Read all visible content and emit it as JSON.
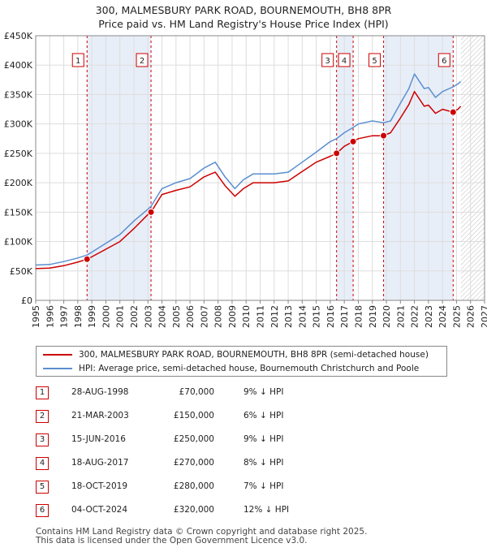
{
  "title": {
    "line1": "300, MALMESBURY PARK ROAD, BOURNEMOUTH, BH8 8PR",
    "line2": "Price paid vs. HM Land Registry's House Price Index (HPI)"
  },
  "colors": {
    "property": "#cc0000",
    "hpi": "#5b8fd0",
    "shade": "#e8eef8"
  },
  "legend": {
    "property": "300, MALMESBURY PARK ROAD, BOURNEMOUTH, BH8 8PR (semi-detached house)",
    "hpi": "HPI: Average price, semi-detached house, Bournemouth Christchurch and Poole"
  },
  "transactions": [
    {
      "num": "1",
      "date": "28-AUG-1998",
      "price": "£70,000",
      "hpi": "9% ↓ HPI"
    },
    {
      "num": "2",
      "date": "21-MAR-2003",
      "price": "£150,000",
      "hpi": "6% ↓ HPI"
    },
    {
      "num": "3",
      "date": "15-JUN-2016",
      "price": "£250,000",
      "hpi": "9% ↓ HPI"
    },
    {
      "num": "4",
      "date": "18-AUG-2017",
      "price": "£270,000",
      "hpi": "8% ↓ HPI"
    },
    {
      "num": "5",
      "date": "18-OCT-2019",
      "price": "£280,000",
      "hpi": "7% ↓ HPI"
    },
    {
      "num": "6",
      "date": "04-OCT-2024",
      "price": "£320,000",
      "hpi": "12% ↓ HPI"
    }
  ],
  "footer": {
    "line1": "Contains HM Land Registry data © Crown copyright and database right 2025.",
    "line2": "This data is licensed under the Open Government Licence v3.0."
  },
  "chart_data": {
    "type": "line",
    "xlim": [
      1995,
      2027
    ],
    "ylim": [
      0,
      450000
    ],
    "x_ticks": [
      "1995",
      "1996",
      "1997",
      "1998",
      "1999",
      "2000",
      "2001",
      "2002",
      "2003",
      "2004",
      "2005",
      "2006",
      "2007",
      "2008",
      "2009",
      "2010",
      "2011",
      "2012",
      "2013",
      "2014",
      "2015",
      "2016",
      "2017",
      "2018",
      "2019",
      "2020",
      "2021",
      "2022",
      "2023",
      "2024",
      "2025",
      "2026",
      "2027"
    ],
    "y_ticks": [
      {
        "value": 0,
        "label": "£0"
      },
      {
        "value": 50000,
        "label": "£50K"
      },
      {
        "value": 100000,
        "label": "£100K"
      },
      {
        "value": 150000,
        "label": "£150K"
      },
      {
        "value": 200000,
        "label": "£200K"
      },
      {
        "value": 250000,
        "label": "£250K"
      },
      {
        "value": 300000,
        "label": "£300K"
      },
      {
        "value": 350000,
        "label": "£350K"
      },
      {
        "value": 400000,
        "label": "£400K"
      },
      {
        "value": 450000,
        "label": "£450K"
      }
    ],
    "forecast_start": 2025.3,
    "grid": true,
    "sales": [
      {
        "label": "1",
        "x": 1998.66,
        "y": 70000
      },
      {
        "label": "2",
        "x": 2003.22,
        "y": 150000
      },
      {
        "label": "3",
        "x": 2016.45,
        "y": 250000
      },
      {
        "label": "4",
        "x": 2017.63,
        "y": 270000
      },
      {
        "label": "5",
        "x": 2019.8,
        "y": 280000
      },
      {
        "label": "6",
        "x": 2024.76,
        "y": 320000
      }
    ],
    "series": [
      {
        "name": "HPI: Average price, semi-detached house, Bournemouth Christchurch and Poole",
        "x": [
          1995,
          1996,
          1997,
          1998,
          1998.66,
          1999,
          2000,
          2001,
          2002,
          2003,
          2003.22,
          2004,
          2005,
          2006,
          2007,
          2007.8,
          2008.5,
          2009.2,
          2009.8,
          2010.5,
          2011,
          2012,
          2013,
          2014,
          2015,
          2016,
          2016.45,
          2017,
          2017.63,
          2018,
          2019,
          2019.8,
          2020.3,
          2021,
          2021.6,
          2022,
          2022.7,
          2023,
          2023.5,
          2024,
          2024.76,
          2025.1,
          2025.3
        ],
        "y": [
          60000,
          61000,
          66000,
          72000,
          77000,
          82000,
          97000,
          112000,
          135000,
          155000,
          160000,
          190000,
          200000,
          207000,
          225000,
          235000,
          210000,
          190000,
          205000,
          215000,
          215000,
          215000,
          218000,
          235000,
          252000,
          270000,
          275000,
          285000,
          294000,
          300000,
          305000,
          302000,
          305000,
          335000,
          360000,
          385000,
          360000,
          362000,
          345000,
          355000,
          363000,
          368000,
          372000
        ]
      },
      {
        "name": "300, MALMESBURY PARK ROAD, BOURNEMOUTH, BH8 8PR (semi-detached house)",
        "x": [
          1995,
          1996,
          1997,
          1998,
          1998.66,
          1999,
          2000,
          2001,
          2002,
          2003,
          2003.22,
          2004,
          2005,
          2006,
          2007,
          2007.8,
          2008.5,
          2009.2,
          2009.8,
          2010.5,
          2011,
          2012,
          2013,
          2014,
          2015,
          2016,
          2016.45,
          2017,
          2017.63,
          2018,
          2019,
          2019.8,
          2020.3,
          2021,
          2021.6,
          2022,
          2022.7,
          2023,
          2023.5,
          2024,
          2024.76,
          2025.1,
          2025.3
        ],
        "y": [
          54000,
          55000,
          59000,
          65000,
          70000,
          74000,
          87000,
          100000,
          122000,
          146000,
          150000,
          180000,
          187000,
          193000,
          210000,
          218000,
          195000,
          177000,
          190000,
          200000,
          200000,
          200000,
          203000,
          219000,
          235000,
          245000,
          250000,
          262000,
          270000,
          275000,
          280000,
          280000,
          285000,
          310000,
          333000,
          355000,
          330000,
          332000,
          318000,
          325000,
          320000,
          325000,
          330000
        ]
      }
    ]
  }
}
